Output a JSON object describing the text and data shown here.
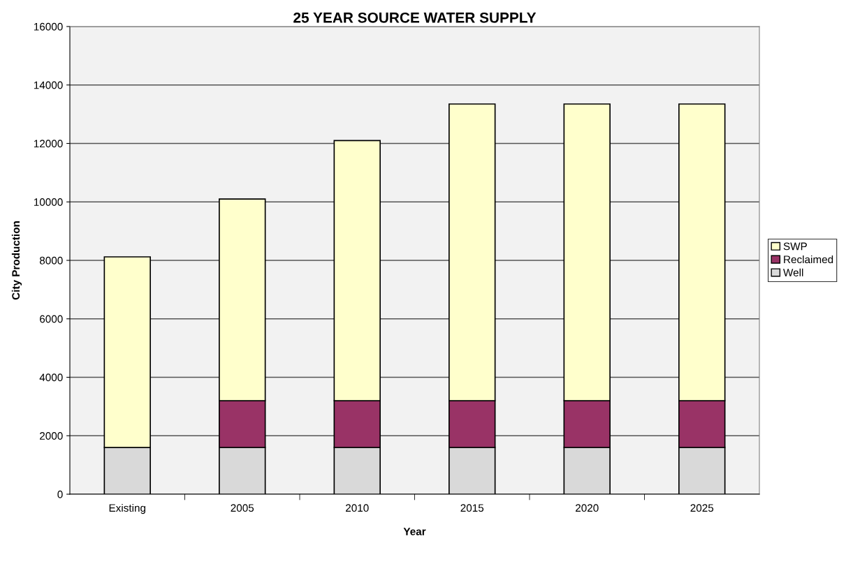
{
  "chart_data": {
    "type": "bar",
    "title": "25 YEAR SOURCE WATER SUPPLY",
    "xlabel": "Year",
    "ylabel": "City Production",
    "categories": [
      "Existing",
      "2005",
      "2010",
      "2015",
      "2020",
      "2025"
    ],
    "stacked": true,
    "series": [
      {
        "name": "Well",
        "color": "#d9d9d9",
        "values": [
          1600,
          1600,
          1600,
          1600,
          1600,
          1600
        ]
      },
      {
        "name": "Reclaimed",
        "color": "#993366",
        "values": [
          0,
          1600,
          1600,
          1600,
          1600,
          1600
        ]
      },
      {
        "name": "SWP",
        "color": "#ffffcc",
        "values": [
          6520,
          6900,
          8900,
          10150,
          10150,
          10150
        ]
      }
    ],
    "ylim": [
      0,
      16000
    ],
    "yticks": [
      0,
      2000,
      4000,
      6000,
      8000,
      10000,
      12000,
      14000,
      16000
    ],
    "grid": "y",
    "legend": "right"
  }
}
